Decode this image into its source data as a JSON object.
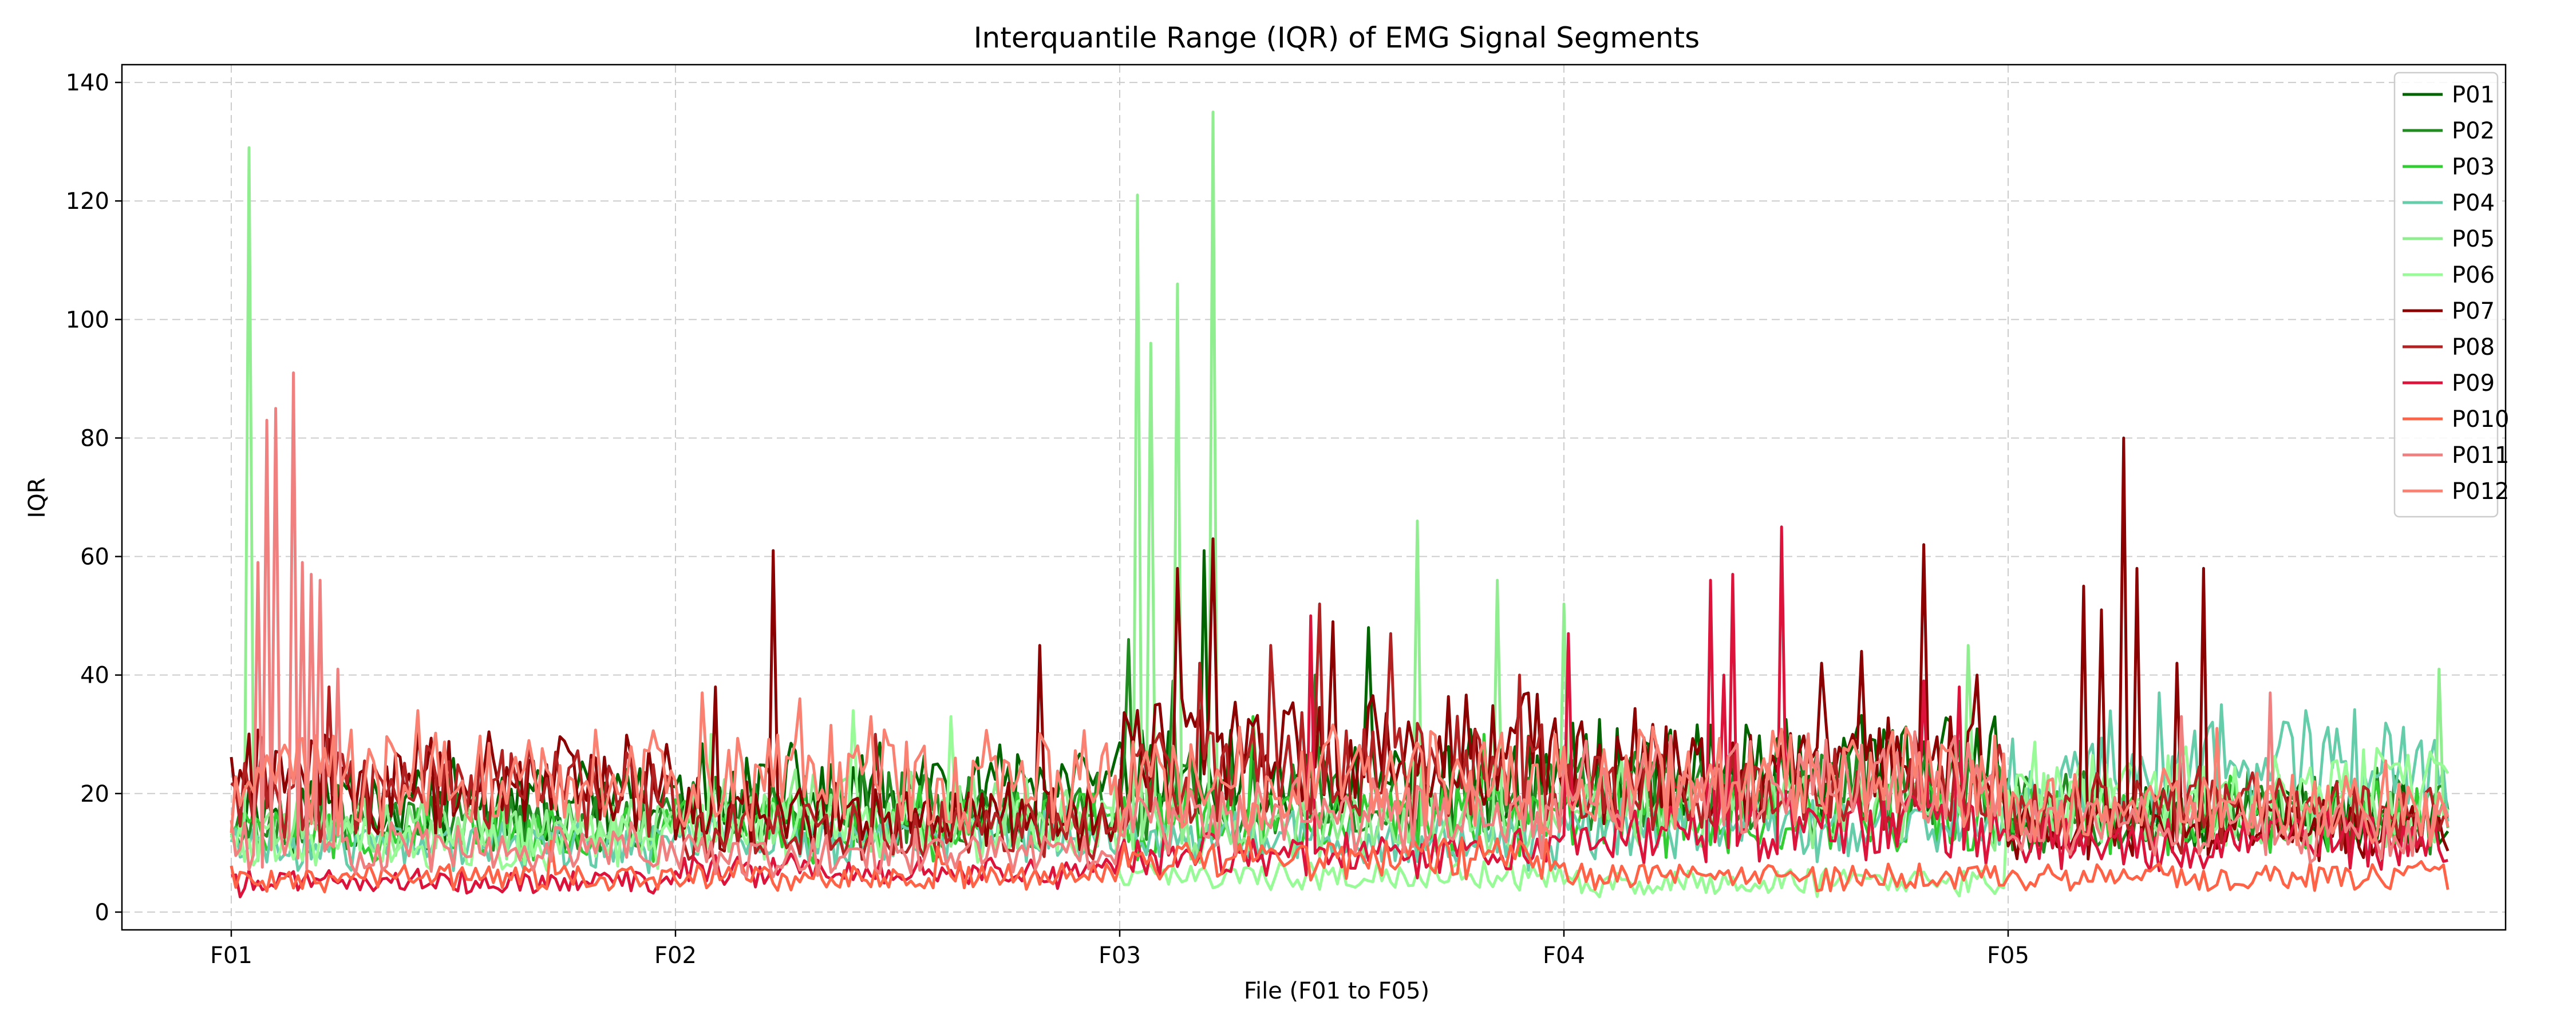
{
  "chart_data": {
    "type": "line",
    "title": "Interquantile Range (IQR) of EMG Signal Segments",
    "xlabel": "File (F01 to F05)",
    "ylabel": "IQR",
    "xticks": [
      "F01",
      "F02",
      "F03",
      "F04",
      "F05"
    ],
    "points_per_file": 100,
    "n_points": 500,
    "ylim": [
      -3,
      143
    ],
    "yticks": [
      0,
      20,
      40,
      60,
      80,
      100,
      120,
      140
    ],
    "grid": true,
    "legend_position": "top-right",
    "series": [
      {
        "name": "P01",
        "color": "#006400",
        "base": [
          18,
          20,
          22,
          24,
          16
        ],
        "spikes": [
          [
            219,
            61
          ],
          [
            256,
            48
          ],
          [
            268,
            25
          ]
        ]
      },
      {
        "name": "P02",
        "color": "#228b22",
        "base": [
          15,
          17,
          19,
          20,
          17
        ],
        "spikes": [
          [
            202,
            46
          ],
          [
            212,
            39
          ],
          [
            244,
            40
          ]
        ]
      },
      {
        "name": "P03",
        "color": "#32cd32",
        "base": [
          13,
          15,
          16,
          16,
          16
        ],
        "spikes": [
          [
            230,
            33
          ],
          [
            282,
            30
          ]
        ]
      },
      {
        "name": "P04",
        "color": "#66cdaa",
        "base": [
          11,
          13,
          12,
          14,
          24
        ],
        "spikes": [
          [
            434,
            37
          ],
          [
            448,
            35
          ],
          [
            467,
            34
          ]
        ]
      },
      {
        "name": "P05",
        "color": "#90ee90",
        "base": [
          14,
          17,
          15,
          18,
          17
        ],
        "spikes": [
          [
            4,
            129
          ],
          [
            204,
            121
          ],
          [
            207,
            96
          ],
          [
            213,
            106
          ],
          [
            221,
            135
          ],
          [
            267,
            66
          ],
          [
            285,
            56
          ],
          [
            300,
            52
          ],
          [
            391,
            45
          ],
          [
            497,
            41
          ]
        ]
      },
      {
        "name": "P06",
        "color": "#98fb98",
        "base": [
          12,
          14,
          6,
          5,
          20
        ],
        "spikes": [
          [
            108,
            30
          ],
          [
            140,
            34
          ],
          [
            162,
            33
          ]
        ]
      },
      {
        "name": "P07",
        "color": "#8b0000",
        "base": [
          22,
          16,
          28,
          24,
          14
        ],
        "spikes": [
          [
            109,
            38
          ],
          [
            122,
            61
          ],
          [
            182,
            45
          ],
          [
            213,
            58
          ],
          [
            221,
            63
          ],
          [
            248,
            49
          ],
          [
            358,
            42
          ],
          [
            367,
            44
          ],
          [
            381,
            62
          ],
          [
            393,
            41
          ],
          [
            393,
            40
          ],
          [
            417,
            55
          ],
          [
            421,
            51
          ],
          [
            426,
            80
          ],
          [
            429,
            58
          ],
          [
            438,
            42
          ],
          [
            444,
            58
          ]
        ]
      },
      {
        "name": "P08",
        "color": "#b22222",
        "base": [
          20,
          14,
          24,
          20,
          17
        ],
        "spikes": [
          [
            22,
            38
          ],
          [
            145,
            30
          ],
          [
            218,
            42
          ],
          [
            234,
            45
          ],
          [
            245,
            52
          ],
          [
            261,
            47
          ],
          [
            290,
            40
          ]
        ]
      },
      {
        "name": "P09",
        "color": "#dc143c",
        "base": [
          5,
          7,
          10,
          14,
          12
        ],
        "spikes": [
          [
            243,
            50
          ],
          [
            301,
            47
          ],
          [
            333,
            56
          ],
          [
            336,
            40
          ],
          [
            338,
            57
          ],
          [
            349,
            65
          ],
          [
            381,
            39
          ],
          [
            389,
            38
          ]
        ]
      },
      {
        "name": "P010",
        "color": "#ff6347",
        "base": [
          6,
          6,
          9,
          6,
          6
        ],
        "spikes": [
          [
            72,
            12
          ],
          [
            159,
            11
          ]
        ]
      },
      {
        "name": "P011",
        "color": "#f08080",
        "base": [
          11,
          10,
          16,
          22,
          14
        ],
        "spikes": [
          [
            6,
            59
          ],
          [
            8,
            83
          ],
          [
            10,
            85
          ],
          [
            14,
            91
          ],
          [
            16,
            59
          ],
          [
            18,
            57
          ],
          [
            20,
            56
          ],
          [
            24,
            41
          ],
          [
            439,
            33
          ],
          [
            459,
            37
          ]
        ]
      },
      {
        "name": "P012",
        "color": "#fa8072",
        "base": [
          22,
          22,
          22,
          22,
          18
        ],
        "spikes": [
          [
            42,
            34
          ],
          [
            106,
            37
          ],
          [
            128,
            36
          ],
          [
            144,
            33
          ],
          [
            212,
            28
          ],
          [
            298,
            30
          ],
          [
            447,
            31
          ]
        ]
      }
    ]
  }
}
